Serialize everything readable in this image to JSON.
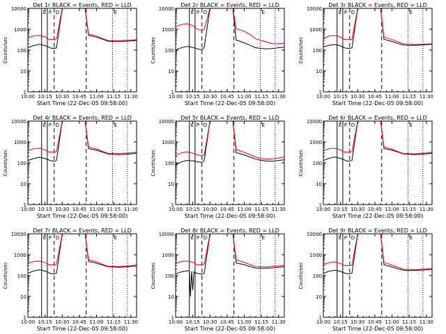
{
  "figure": {
    "background": "#ffffff",
    "axis_color": "#000000",
    "events_color": "#000000",
    "lld_color": "#ff0000"
  },
  "shared": {
    "xlabel": "Start Time (22-Dec-05 09:58:00)",
    "ylabel": "Counts/sec",
    "x_ticks": [
      "10:00",
      "10:15",
      "10:30",
      "10:45",
      "11:00",
      "11:15",
      "11:30"
    ],
    "y_ticks": [
      "1",
      "10",
      "100",
      "1000",
      "10000"
    ],
    "marker_labels": [
      "E",
      "P",
      "D",
      "E"
    ]
  },
  "chart_data": [
    {
      "type": "line",
      "title": "Det 1r BLACK = Events, RED = LLD",
      "x_unit": "minutes after 10:00",
      "xlim": [
        0,
        95
      ],
      "ylim": [
        1,
        10000
      ],
      "y_scale": "log",
      "x": [
        0,
        5,
        10,
        15,
        18,
        20,
        23,
        25,
        30,
        35,
        40,
        45,
        50,
        53,
        55,
        60,
        65,
        70,
        75,
        80,
        85,
        90,
        95
      ],
      "series": [
        {
          "name": "BLACK = Events",
          "values": [
            130,
            165,
            190,
            165,
            140,
            125,
            120,
            130,
            10000,
            10000,
            10000,
            10000,
            10000,
            500,
            480,
            420,
            340,
            270,
            260,
            255,
            265,
            275,
            290
          ]
        },
        {
          "name": "RED = LLD",
          "values": [
            380,
            480,
            510,
            430,
            330,
            320,
            330,
            350,
            10000,
            10000,
            10000,
            10000,
            10000,
            600,
            560,
            470,
            360,
            290,
            285,
            280,
            295,
            300,
            320
          ]
        }
      ],
      "solid_markers": [
        12,
        17
      ],
      "dashed_markers": [
        23,
        51
      ],
      "dotted_markers": [
        74,
        87
      ]
    },
    {
      "type": "line",
      "title": "Det 2r BLACK = Events, RED = LLD",
      "x_unit": "minutes after 10:00",
      "xlim": [
        0,
        95
      ],
      "ylim": [
        1,
        10000
      ],
      "y_scale": "log",
      "x": [
        0,
        5,
        10,
        15,
        18,
        20,
        23,
        25,
        30,
        35,
        40,
        45,
        50,
        53,
        55,
        60,
        65,
        70,
        75,
        80,
        85,
        90,
        95
      ],
      "series": [
        {
          "name": "BLACK = Events",
          "values": [
            100,
            130,
            150,
            135,
            120,
            110,
            105,
            140,
            10000,
            10000,
            10000,
            10000,
            10000,
            300,
            280,
            220,
            170,
            130,
            120,
            115,
            120,
            130,
            140
          ]
        },
        {
          "name": "RED = LLD",
          "values": [
            1300,
            1700,
            1850,
            1500,
            1100,
            950,
            900,
            1000,
            10000,
            10000,
            10000,
            10000,
            10000,
            1050,
            980,
            800,
            560,
            350,
            290,
            240,
            200,
            200,
            210
          ]
        }
      ],
      "solid_markers": [
        12,
        17
      ],
      "dashed_markers": [
        23,
        51
      ],
      "dotted_markers": [
        74,
        87
      ]
    },
    {
      "type": "line",
      "title": "Det 3r BLACK = Events, RED = LLD",
      "x_unit": "minutes after 10:00",
      "xlim": [
        0,
        95
      ],
      "ylim": [
        1,
        10000
      ],
      "y_scale": "log",
      "x": [
        0,
        5,
        10,
        15,
        18,
        20,
        23,
        25,
        30,
        35,
        40,
        45,
        50,
        53,
        55,
        60,
        65,
        70,
        75,
        80,
        85,
        90,
        95
      ],
      "series": [
        {
          "name": "BLACK = Events",
          "values": [
            140,
            170,
            185,
            160,
            130,
            125,
            120,
            130,
            10000,
            10000,
            10000,
            10000,
            10000,
            330,
            310,
            260,
            210,
            175,
            170,
            170,
            175,
            180,
            190
          ]
        },
        {
          "name": "RED = LLD",
          "values": [
            350,
            470,
            500,
            420,
            330,
            320,
            320,
            330,
            10000,
            10000,
            10000,
            10000,
            10000,
            420,
            390,
            320,
            250,
            200,
            190,
            185,
            190,
            195,
            200
          ]
        }
      ],
      "solid_markers": [
        12,
        17
      ],
      "dashed_markers": [
        23,
        51
      ],
      "dotted_markers": [
        74,
        87
      ]
    },
    {
      "type": "line",
      "title": "Det 4r BLACK = Events, RED = LLD",
      "x_unit": "minutes after 10:00",
      "xlim": [
        0,
        95
      ],
      "ylim": [
        1,
        10000
      ],
      "y_scale": "log",
      "x": [
        0,
        5,
        10,
        15,
        18,
        20,
        23,
        25,
        30,
        35,
        40,
        45,
        50,
        53,
        55,
        60,
        65,
        70,
        75,
        80,
        85,
        90,
        95
      ],
      "series": [
        {
          "name": "BLACK = Events",
          "values": [
            130,
            160,
            185,
            160,
            140,
            125,
            120,
            130,
            10000,
            10000,
            10000,
            10000,
            10000,
            480,
            460,
            400,
            330,
            270,
            255,
            250,
            260,
            270,
            290
          ]
        },
        {
          "name": "RED = LLD",
          "values": [
            380,
            470,
            500,
            420,
            330,
            320,
            330,
            350,
            10000,
            10000,
            10000,
            10000,
            10000,
            590,
            550,
            460,
            360,
            285,
            280,
            275,
            290,
            300,
            320
          ]
        }
      ],
      "solid_markers": [
        12,
        17
      ],
      "dashed_markers": [
        23,
        51
      ],
      "dotted_markers": [
        74,
        87
      ]
    },
    {
      "type": "line",
      "title": "Det 5r BLACK = Events, RED = LLD",
      "x_unit": "minutes after 10:00",
      "xlim": [
        0,
        95
      ],
      "ylim": [
        1,
        10000
      ],
      "y_scale": "log",
      "x": [
        0,
        5,
        10,
        15,
        18,
        20,
        23,
        25,
        30,
        35,
        40,
        45,
        50,
        53,
        55,
        60,
        65,
        70,
        75,
        80,
        85,
        90,
        95
      ],
      "series": [
        {
          "name": "BLACK = Events",
          "values": [
            80,
            110,
            130,
            125,
            115,
            110,
            105,
            130,
            10000,
            10000,
            10000,
            10000,
            10000,
            300,
            290,
            240,
            190,
            150,
            130,
            120,
            120,
            130,
            140
          ]
        },
        {
          "name": "RED = LLD",
          "values": [
            230,
            300,
            330,
            290,
            250,
            230,
            220,
            240,
            10000,
            10000,
            10000,
            10000,
            10000,
            420,
            400,
            320,
            250,
            190,
            160,
            150,
            155,
            170,
            190
          ]
        }
      ],
      "solid_markers": [
        12,
        17
      ],
      "dashed_markers": [
        23,
        51
      ],
      "dotted_markers": [
        74,
        87
      ]
    },
    {
      "type": "line",
      "title": "Det 6r BLACK = Events, RED = LLD",
      "x_unit": "minutes after 10:00",
      "xlim": [
        0,
        95
      ],
      "ylim": [
        1,
        10000
      ],
      "y_scale": "log",
      "x": [
        0,
        5,
        10,
        15,
        18,
        20,
        23,
        25,
        30,
        35,
        40,
        45,
        50,
        53,
        55,
        60,
        65,
        70,
        75,
        80,
        85,
        90,
        95
      ],
      "series": [
        {
          "name": "BLACK = Events",
          "values": [
            130,
            165,
            190,
            165,
            140,
            125,
            120,
            130,
            10000,
            10000,
            10000,
            10000,
            10000,
            480,
            460,
            400,
            330,
            270,
            255,
            250,
            260,
            270,
            290
          ]
        },
        {
          "name": "RED = LLD",
          "values": [
            380,
            470,
            500,
            420,
            330,
            320,
            330,
            350,
            10000,
            10000,
            10000,
            10000,
            10000,
            580,
            540,
            450,
            350,
            280,
            275,
            270,
            285,
            295,
            320
          ]
        }
      ],
      "solid_markers": [
        12,
        17
      ],
      "dashed_markers": [
        23,
        51
      ],
      "dotted_markers": [
        74,
        87
      ]
    },
    {
      "type": "line",
      "title": "Det 7r BLACK = Events, RED = LLD",
      "x_unit": "minutes after 10:00",
      "xlim": [
        0,
        95
      ],
      "ylim": [
        1,
        10000
      ],
      "y_scale": "log",
      "x": [
        0,
        5,
        10,
        15,
        18,
        20,
        23,
        25,
        30,
        35,
        40,
        45,
        50,
        53,
        55,
        60,
        65,
        70,
        75,
        80,
        85,
        90,
        95
      ],
      "series": [
        {
          "name": "BLACK = Events",
          "values": [
            130,
            165,
            190,
            165,
            140,
            125,
            120,
            130,
            10000,
            10000,
            10000,
            10000,
            10000,
            470,
            450,
            390,
            320,
            265,
            255,
            250,
            260,
            270,
            290
          ]
        },
        {
          "name": "RED = LLD",
          "values": [
            380,
            470,
            500,
            420,
            330,
            320,
            330,
            350,
            10000,
            10000,
            10000,
            10000,
            10000,
            580,
            540,
            450,
            350,
            280,
            275,
            270,
            285,
            295,
            320
          ]
        }
      ],
      "solid_markers": [
        12,
        17
      ],
      "dashed_markers": [
        23,
        51
      ],
      "dotted_markers": [
        74,
        87
      ]
    },
    {
      "type": "line",
      "title": "Det 8r BLACK = Events, RED = LLD",
      "x_unit": "minutes after 10:00",
      "xlim": [
        0,
        95
      ],
      "ylim": [
        1,
        10000
      ],
      "y_scale": "log",
      "x": [
        0,
        5,
        10,
        12,
        13,
        14,
        15,
        16,
        17,
        18,
        20,
        23,
        25,
        30,
        35,
        40,
        45,
        50,
        53,
        55,
        60,
        65,
        70,
        75,
        80,
        85,
        90,
        95
      ],
      "series": [
        {
          "name": "BLACK = Events",
          "values": [
            120,
            150,
            170,
            165,
            10,
            160,
            20,
            150,
            140,
            130,
            125,
            115,
            130,
            10000,
            10000,
            10000,
            10000,
            10000,
            400,
            380,
            330,
            270,
            230,
            225,
            225,
            235,
            250,
            270
          ]
        },
        {
          "name": "RED = LLD",
          "values": [
            380,
            470,
            500,
            480,
            470,
            450,
            430,
            420,
            380,
            330,
            320,
            330,
            350,
            10000,
            10000,
            10000,
            10000,
            10000,
            560,
            520,
            430,
            340,
            270,
            265,
            260,
            275,
            285,
            310
          ]
        }
      ],
      "solid_markers": [
        12,
        17
      ],
      "dashed_markers": [
        23,
        51
      ],
      "dotted_markers": [
        74,
        87
      ]
    },
    {
      "type": "line",
      "title": "Det 9r BLACK = Events, RED = LLD",
      "x_unit": "minutes after 10:00",
      "xlim": [
        0,
        95
      ],
      "ylim": [
        1,
        10000
      ],
      "y_scale": "log",
      "x": [
        0,
        5,
        10,
        15,
        18,
        20,
        23,
        25,
        30,
        35,
        40,
        45,
        50,
        53,
        55,
        60,
        65,
        70,
        75,
        80,
        85,
        90,
        95
      ],
      "series": [
        {
          "name": "BLACK = Events",
          "values": [
            130,
            160,
            180,
            160,
            135,
            125,
            120,
            130,
            10000,
            10000,
            10000,
            10000,
            10000,
            330,
            310,
            260,
            210,
            180,
            175,
            175,
            180,
            190,
            200
          ]
        },
        {
          "name": "RED = LLD",
          "values": [
            330,
            420,
            450,
            380,
            310,
            300,
            300,
            320,
            10000,
            10000,
            10000,
            10000,
            10000,
            420,
            390,
            320,
            250,
            200,
            195,
            190,
            200,
            205,
            215
          ]
        }
      ],
      "solid_markers": [
        12,
        17
      ],
      "dashed_markers": [
        23,
        51
      ],
      "dotted_markers": [
        74,
        87
      ]
    }
  ]
}
